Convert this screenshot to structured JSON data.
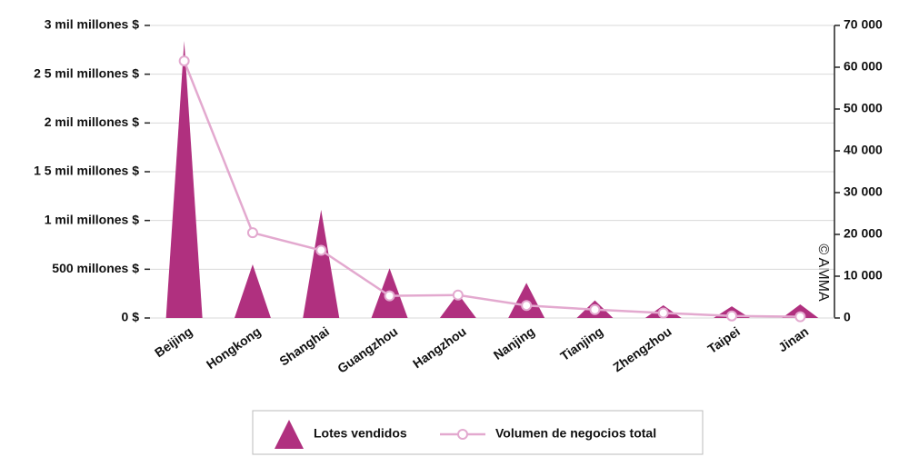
{
  "chart_data": {
    "type": "bar-line",
    "annotation": "© AMMA",
    "categories": [
      "Beijing",
      "Hongkong",
      "Shanghai",
      "Guangzhou",
      "Hangzhou",
      "Nanjing",
      "Tianjing",
      "Zhengzhou",
      "Taipei",
      "Jinan"
    ],
    "series": [
      {
        "name": "Lotes vendidos",
        "color": "#b0307f",
        "axis": "y",
        "values": [
          2840000000,
          550000000,
          1110000000,
          510000000,
          250000000,
          360000000,
          180000000,
          130000000,
          120000000,
          140000000
        ]
      },
      {
        "name": "Volumen de negocios total",
        "color": "#e3a9cf",
        "axis": "y2",
        "values": [
          61500,
          20400,
          16200,
          5300,
          5500,
          3000,
          2000,
          1200,
          500,
          300
        ]
      }
    ],
    "ylim": [
      0,
      3000000000
    ],
    "yticks": [
      {
        "value": 0,
        "label": "0 $"
      },
      {
        "value": 500000000,
        "label": "500 millones $"
      },
      {
        "value": 1000000000,
        "label": "1 mil millones $"
      },
      {
        "value": 1500000000,
        "label": "1 5 mil millones $"
      },
      {
        "value": 2000000000,
        "label": "2 mil millones $"
      },
      {
        "value": 2500000000,
        "label": "2 5 mil millones $"
      },
      {
        "value": 3000000000,
        "label": "3 mil millones $"
      }
    ],
    "y2lim": [
      0,
      70000
    ],
    "y2ticks": [
      0,
      {
        "value": 10000,
        "label": "10 000"
      },
      {
        "value": 20000,
        "label": "20 000"
      },
      {
        "value": 30000,
        "label": "30 000"
      },
      {
        "value": 40000,
        "label": "40 000"
      },
      {
        "value": 50000,
        "label": "50 000"
      },
      {
        "value": 60000,
        "label": "60 000"
      },
      {
        "value": 70000,
        "label": "70 000"
      }
    ],
    "grid": true
  }
}
